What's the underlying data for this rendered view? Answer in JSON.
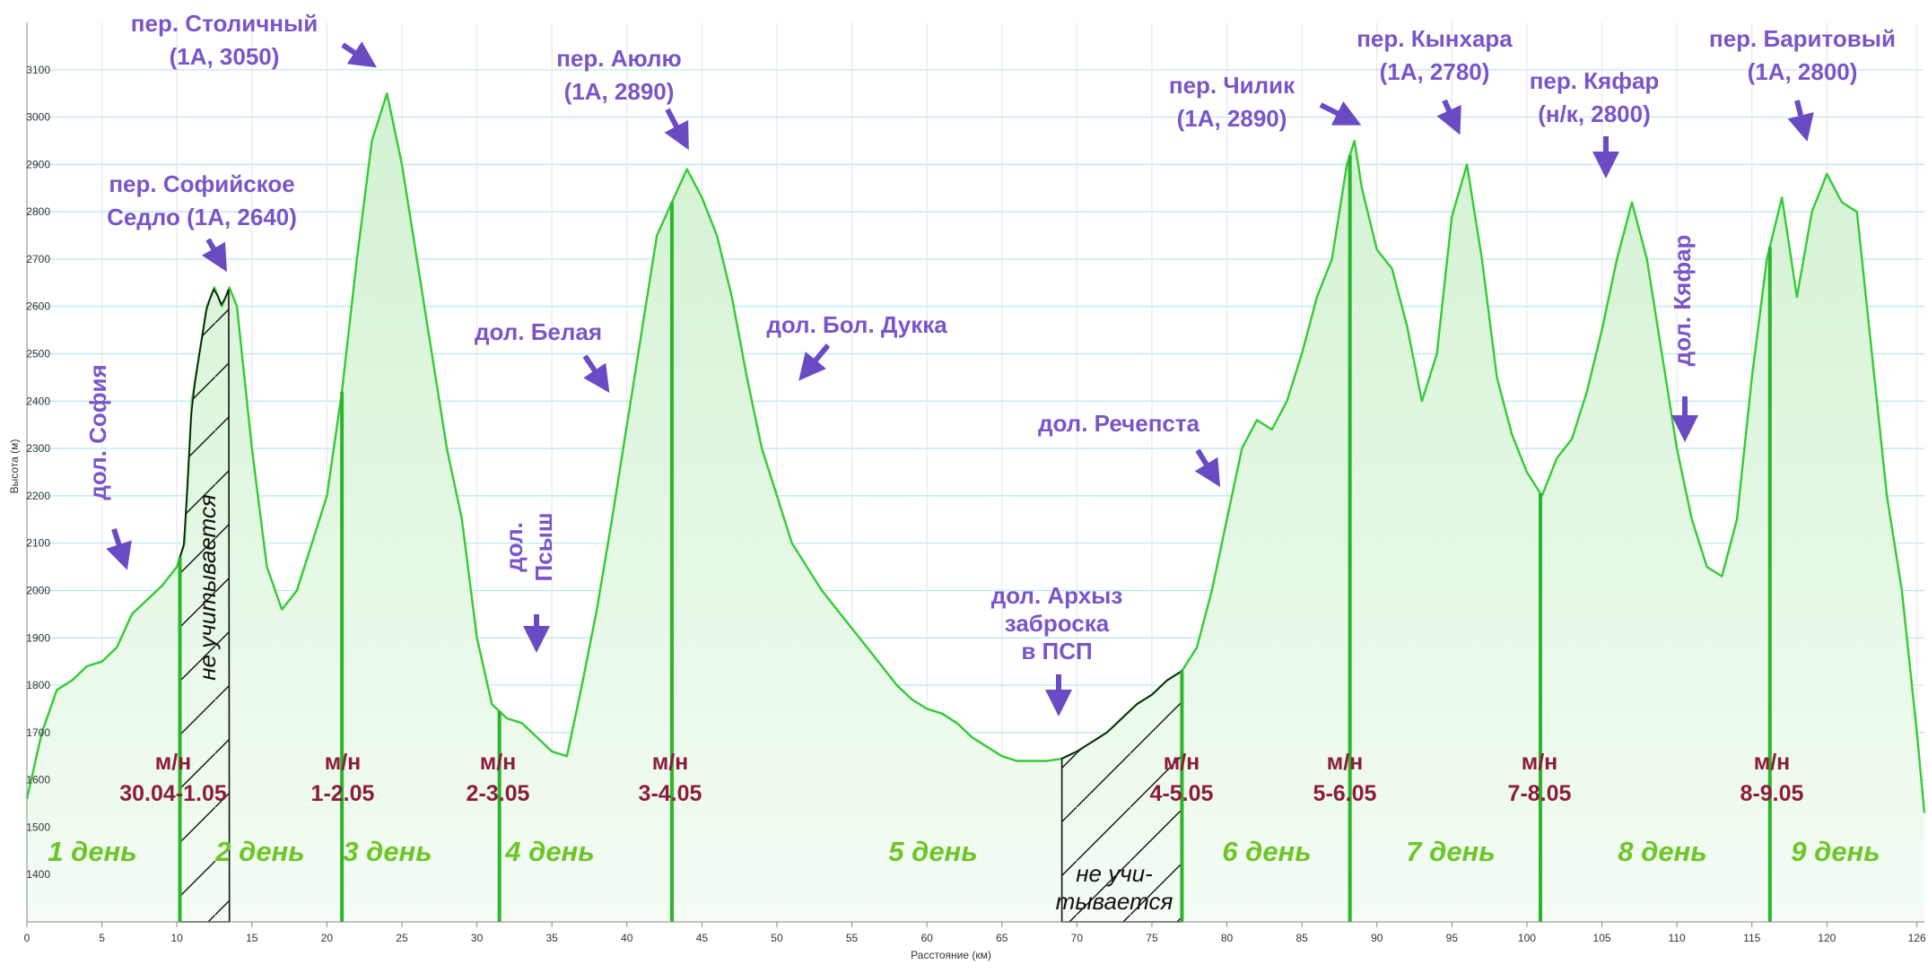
{
  "chart_data": {
    "type": "area",
    "xlabel": "Расстояние (км)",
    "ylabel": "Высота (м)",
    "xlim": [
      0,
      126.5
    ],
    "ylim": [
      1300,
      3200
    ],
    "x_ticks": [
      0,
      5,
      10,
      15,
      20,
      25,
      30,
      35,
      40,
      45,
      50,
      55,
      60,
      65,
      70,
      75,
      80,
      85,
      90,
      95,
      100,
      105,
      110,
      115,
      120,
      126
    ],
    "y_ticks": [
      1400,
      1500,
      1600,
      1700,
      1800,
      1900,
      2000,
      2100,
      2200,
      2300,
      2400,
      2500,
      2600,
      2700,
      2800,
      2900,
      3000,
      3100
    ],
    "grid": true,
    "line_color": "#33cc33",
    "fill_color": "#e6f7e6",
    "series": [
      {
        "x": [
          0,
          1,
          2,
          3,
          4,
          5,
          6,
          7,
          8,
          9,
          10,
          10.5,
          11,
          12,
          12.5,
          13,
          13.5,
          14,
          15,
          16,
          17,
          18,
          19,
          20,
          21,
          22,
          23,
          24,
          25,
          26,
          27,
          28,
          29,
          30,
          31,
          32,
          33,
          34,
          35,
          36,
          37,
          38,
          39,
          40,
          41,
          42,
          43,
          44,
          45,
          46,
          47,
          48,
          49,
          50,
          51,
          52,
          53,
          54,
          55,
          56,
          57,
          58,
          59,
          60,
          61,
          62,
          63,
          64,
          65,
          66,
          67,
          68,
          69,
          70,
          71,
          72,
          73,
          74,
          75,
          76,
          77,
          78,
          79,
          80,
          81,
          82,
          83,
          84,
          85,
          86,
          87,
          88,
          88.5,
          89,
          90,
          91,
          92,
          93,
          94,
          95,
          96,
          97,
          98,
          99,
          100,
          101,
          102,
          103,
          104,
          105,
          106,
          107,
          108,
          109,
          110,
          111,
          112,
          113,
          114,
          115,
          116,
          117,
          118,
          119,
          120,
          121,
          122,
          123,
          124,
          125,
          126,
          126.5
        ],
        "y": [
          1560,
          1700,
          1790,
          1810,
          1840,
          1850,
          1880,
          1950,
          1980,
          2010,
          2050,
          2100,
          2400,
          2600,
          2640,
          2600,
          2640,
          2600,
          2300,
          2050,
          1960,
          2000,
          2100,
          2200,
          2420,
          2700,
          2950,
          3050,
          2900,
          2700,
          2500,
          2300,
          2150,
          1900,
          1760,
          1730,
          1720,
          1690,
          1660,
          1650,
          1800,
          1960,
          2150,
          2350,
          2550,
          2750,
          2820,
          2890,
          2830,
          2750,
          2620,
          2450,
          2300,
          2200,
          2100,
          2050,
          2000,
          1960,
          1920,
          1880,
          1840,
          1800,
          1770,
          1750,
          1740,
          1720,
          1690,
          1670,
          1650,
          1640,
          1640,
          1640,
          1645,
          1660,
          1680,
          1700,
          1730,
          1760,
          1780,
          1810,
          1830,
          1880,
          2000,
          2150,
          2300,
          2360,
          2340,
          2400,
          2500,
          2620,
          2700,
          2900,
          2950,
          2850,
          2720,
          2680,
          2560,
          2400,
          2500,
          2790,
          2900,
          2700,
          2450,
          2330,
          2250,
          2200,
          2280,
          2320,
          2420,
          2550,
          2700,
          2820,
          2700,
          2500,
          2300,
          2150,
          2050,
          2030,
          2150,
          2450,
          2700,
          2830,
          2620,
          2800,
          2880,
          2820,
          2800,
          2500,
          2200,
          2000,
          1700,
          1530
        ]
      }
    ],
    "day_lines_km": [
      10.2,
      21,
      31.5,
      43,
      77,
      88.2,
      100.9,
      116.2
    ],
    "hatched_ranges_km": [
      [
        10.2,
        13.5
      ],
      [
        69,
        77
      ]
    ],
    "annotations": [
      {
        "text": [
          "пер. Столичный",
          "(1А, 3050)"
        ]
      },
      {
        "text": [
          "пер. Софийское",
          "Седло (1А, 2640)"
        ]
      },
      {
        "text": [
          "пер. Аюлю",
          "(1А, 2890)"
        ]
      },
      {
        "text": [
          "дол. Белая"
        ]
      },
      {
        "text": [
          "дол. Бол. Дукка"
        ]
      },
      {
        "text": [
          "пер. Чилик",
          "(1А, 2890)"
        ]
      },
      {
        "text": [
          "пер. Кынхара",
          "(1А, 2780)"
        ]
      },
      {
        "text": [
          "пер. Кяфар",
          "(н/к, 2800)"
        ]
      },
      {
        "text": [
          "пер. Баритовый",
          "(1А, 2800)"
        ]
      },
      {
        "text": [
          "дол. Речепста"
        ]
      },
      {
        "text": [
          "дол. Архыз",
          "заброска",
          "в ПСП"
        ]
      },
      {
        "text": [
          "дол. София"
        ]
      },
      {
        "text": [
          "дол.",
          "Псыш"
        ]
      },
      {
        "text": [
          "дол. Кяфар"
        ]
      }
    ],
    "camps": [
      {
        "label": "м/н",
        "date": "30.04-1.05"
      },
      {
        "label": "м/н",
        "date": "1-2.05"
      },
      {
        "label": "м/н",
        "date": "2-3.05"
      },
      {
        "label": "м/н",
        "date": "3-4.05"
      },
      {
        "label": "м/н",
        "date": "4-5.05"
      },
      {
        "label": "м/н",
        "date": "5-6.05"
      },
      {
        "label": "м/н",
        "date": "7-8.05"
      },
      {
        "label": "м/н",
        "date": "8-9.05"
      }
    ],
    "days": [
      "1 день",
      "2 день",
      "3 день",
      "4 день",
      "5 день",
      "6 день",
      "7 день",
      "8 день",
      "9 день"
    ],
    "not_counted": [
      "не учитывается",
      "не учи-",
      "тывается"
    ]
  }
}
